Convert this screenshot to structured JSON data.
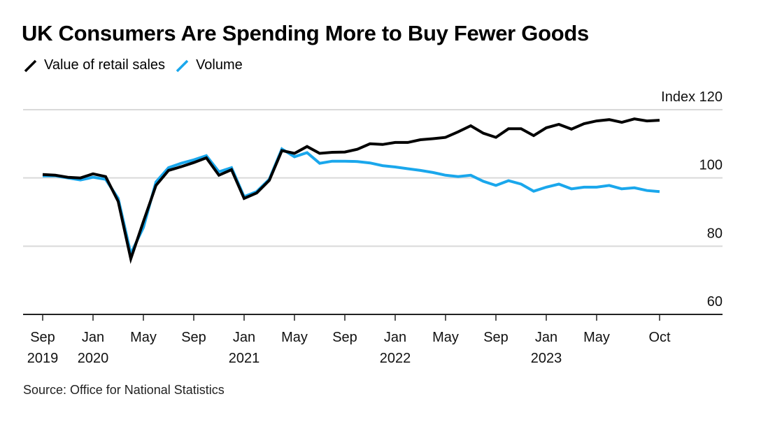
{
  "title": "UK Consumers Are Spending More to Buy Fewer Goods",
  "source": "Source: Office for National Statistics",
  "colors": {
    "value": "#000000",
    "volume": "#1aa7ec",
    "grid": "#d9d9d9",
    "axis": "#222222"
  },
  "chart_data": {
    "type": "line",
    "title": "UK Consumers Are Spending More to Buy Fewer Goods",
    "xlabel": "",
    "ylabel": "Index",
    "ylim": [
      60,
      120
    ],
    "yticks": [
      60,
      80,
      100,
      120
    ],
    "ytick_labels": [
      "60",
      "80",
      "100",
      "Index 120"
    ],
    "grid": true,
    "legend_position": "top-left",
    "x_start": "2019-09",
    "x_end": "2023-10",
    "xticks": [
      {
        "month_index": 0,
        "line1": "Sep",
        "line2": "2019"
      },
      {
        "month_index": 4,
        "line1": "Jan",
        "line2": "2020"
      },
      {
        "month_index": 8,
        "line1": "May",
        "line2": ""
      },
      {
        "month_index": 12,
        "line1": "Sep",
        "line2": ""
      },
      {
        "month_index": 16,
        "line1": "Jan",
        "line2": "2021"
      },
      {
        "month_index": 20,
        "line1": "May",
        "line2": ""
      },
      {
        "month_index": 24,
        "line1": "Sep",
        "line2": ""
      },
      {
        "month_index": 28,
        "line1": "Jan",
        "line2": "2022"
      },
      {
        "month_index": 32,
        "line1": "May",
        "line2": ""
      },
      {
        "month_index": 36,
        "line1": "Sep",
        "line2": ""
      },
      {
        "month_index": 40,
        "line1": "Jan",
        "line2": "2023"
      },
      {
        "month_index": 44,
        "line1": "May",
        "line2": ""
      },
      {
        "month_index": 49,
        "line1": "Oct",
        "line2": ""
      }
    ],
    "x_axis_extent_months": 54,
    "series": [
      {
        "name": "Volume",
        "key": "volume",
        "values": [
          100.6,
          100.6,
          100.0,
          99.4,
          100.2,
          99.6,
          94.0,
          77.8,
          85.5,
          98.8,
          103.0,
          104.3,
          105.3,
          106.5,
          101.8,
          103.0,
          94.5,
          96.0,
          99.6,
          108.5,
          106.2,
          107.4,
          104.3,
          104.9,
          104.9,
          104.8,
          104.4,
          103.6,
          103.2,
          102.7,
          102.2,
          101.6,
          100.8,
          100.4,
          100.8,
          99.0,
          97.8,
          99.2,
          98.2,
          96.1,
          97.3,
          98.2,
          96.8,
          97.3,
          97.3,
          97.8,
          96.8,
          97.1,
          96.3,
          96.0
        ]
      },
      {
        "name": "Value of retail sales",
        "key": "value",
        "values": [
          101.0,
          100.8,
          100.2,
          100.0,
          101.2,
          100.4,
          93.1,
          76.3,
          87.2,
          97.8,
          102.2,
          103.3,
          104.5,
          105.9,
          100.8,
          102.4,
          94.0,
          95.6,
          99.3,
          108.0,
          107.2,
          109.2,
          107.2,
          107.5,
          107.6,
          108.4,
          110.0,
          109.8,
          110.4,
          110.4,
          111.2,
          111.5,
          111.9,
          113.5,
          115.3,
          113.1,
          111.9,
          114.4,
          114.4,
          112.4,
          114.7,
          115.7,
          114.3,
          115.9,
          116.7,
          117.1,
          116.3,
          117.3,
          116.7,
          116.9
        ]
      }
    ]
  },
  "legend": [
    {
      "label": "Value of retail sales",
      "key": "value"
    },
    {
      "label": "Volume",
      "key": "volume"
    }
  ]
}
